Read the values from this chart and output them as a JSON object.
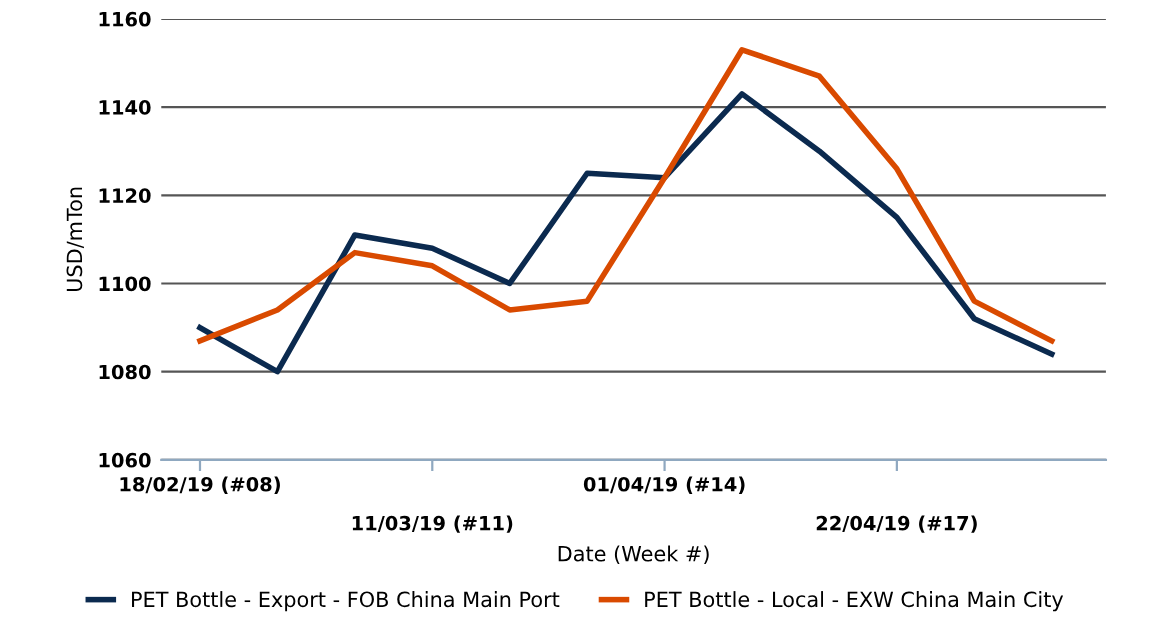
{
  "chart_data": {
    "type": "line",
    "xlabel": "Date (Week #)",
    "ylabel": "USD/mTon",
    "categories": [
      "18/02/19 (#08)",
      null,
      null,
      "11/03/19 (#11)",
      null,
      null,
      "01/04/19 (#14)",
      null,
      null,
      "22/04/19 (#17)",
      null,
      null
    ],
    "series": [
      {
        "name": "PET Bottle - Export - FOB China Main Port",
        "color": "#0b2a4f",
        "values": [
          1090,
          1080,
          1111,
          1108,
          1100,
          1125,
          1124,
          1143,
          1130,
          1115,
          1092,
          1084
        ]
      },
      {
        "name": "PET Bottle - Local - EXW China Main City",
        "color": "#d94a00",
        "values": [
          1087,
          1094,
          1107,
          1104,
          1094,
          1096,
          1124,
          1153,
          1147,
          1126,
          1096,
          1087
        ]
      }
    ],
    "ylim": [
      1060,
      1160
    ],
    "yticks": [
      1060,
      1080,
      1100,
      1120,
      1140,
      1160
    ],
    "grid": "y",
    "legend": "bottom",
    "marker": "none",
    "line_style": "solid"
  }
}
